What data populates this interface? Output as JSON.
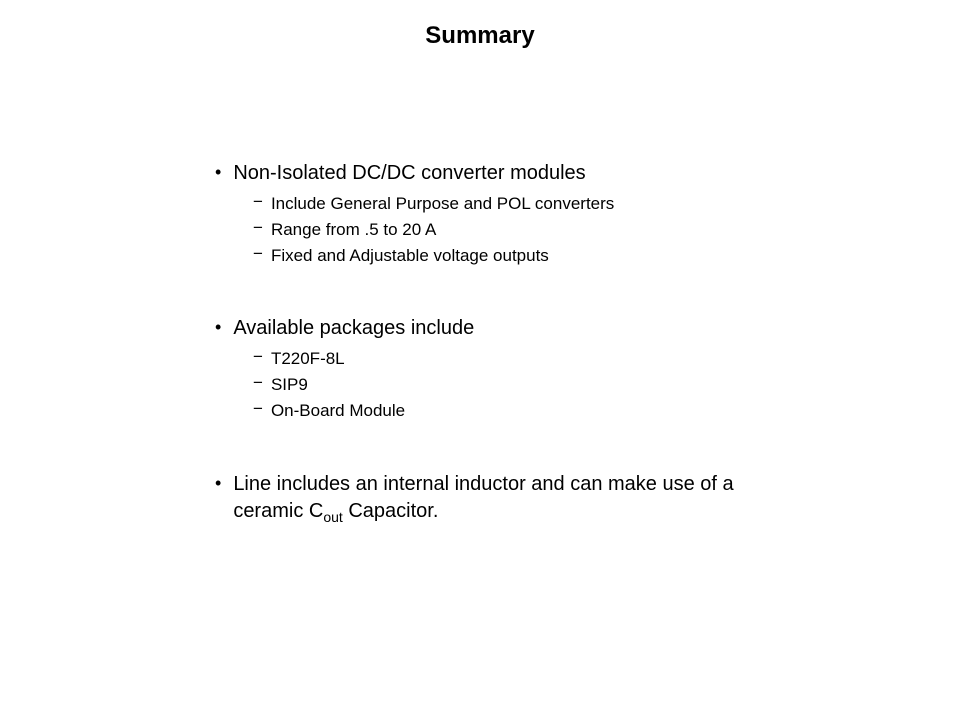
{
  "title": "Summary",
  "section1": {
    "heading": "Non-Isolated DC/DC converter modules",
    "item1": "Include General Purpose and POL converters",
    "item2": "Range from .5 to 20 A",
    "item3": "Fixed and Adjustable voltage outputs"
  },
  "section2": {
    "heading": "Available packages include",
    "item1": "T220F-8L",
    "item2": "SIP9",
    "item3": "On-Board Module"
  },
  "section3": {
    "prefix": "Line includes an internal inductor and can make use of a ceramic C",
    "subscript": "out",
    "suffix": " Capacitor."
  },
  "colors": {
    "background": "#ffffff",
    "text": "#000000"
  },
  "fonts": {
    "family": "Verdana",
    "title_size": 24,
    "main_size": 20,
    "sub_size": 17
  }
}
